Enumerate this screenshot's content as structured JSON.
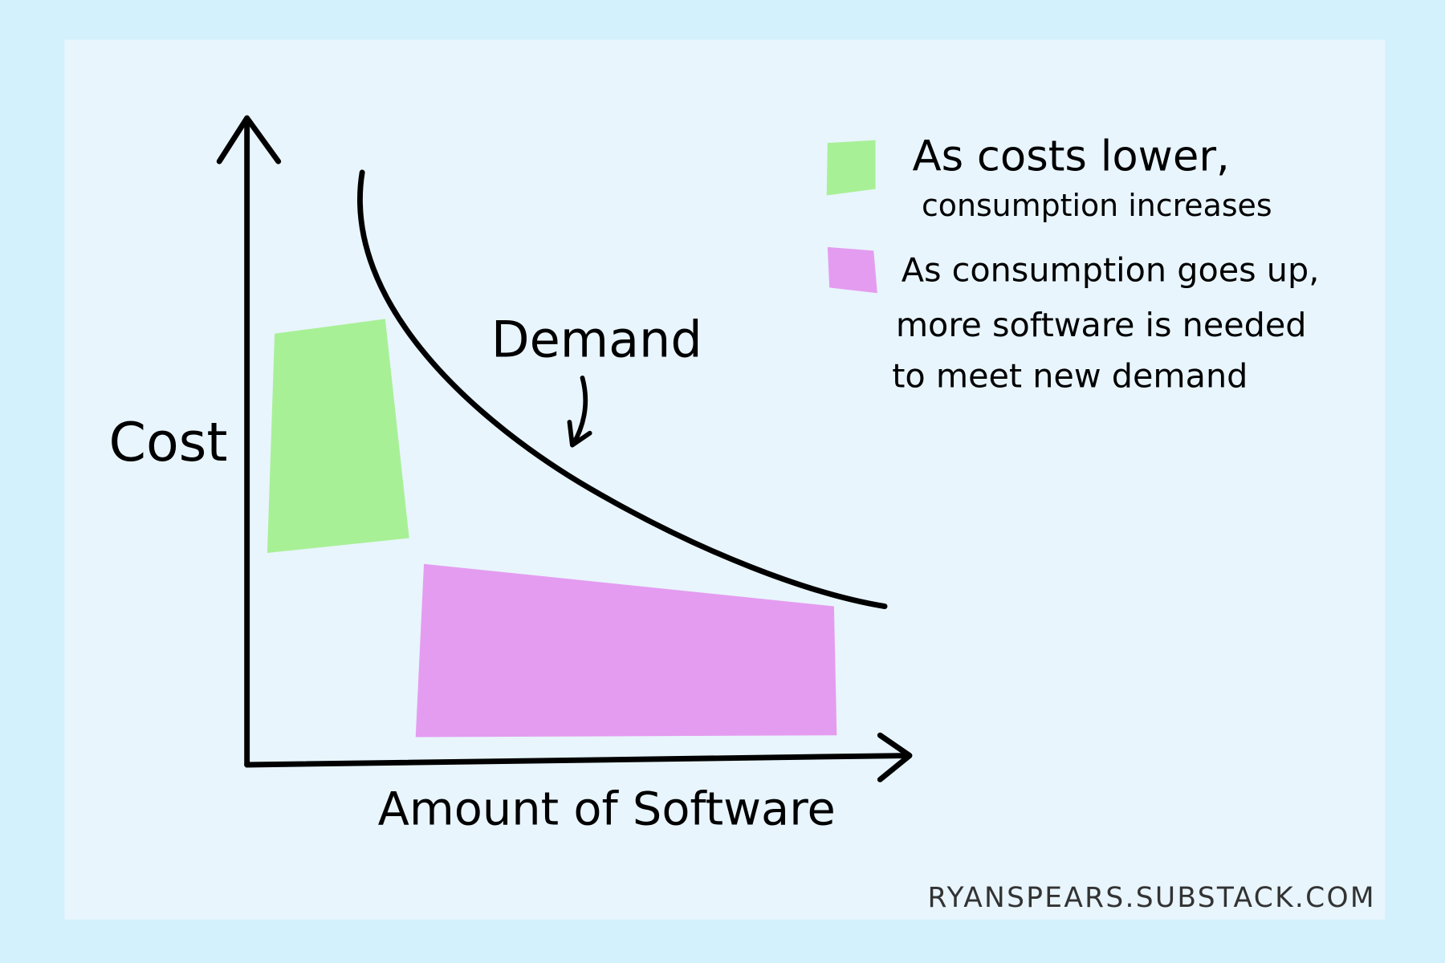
{
  "diagram": {
    "y_axis_label": "Cost",
    "x_axis_label": "Amount of Software",
    "curve_label": "Demand",
    "legend": [
      {
        "lines": [
          "As costs lower,",
          "consumption increases"
        ],
        "color": "#a8f096"
      },
      {
        "lines": [
          "As consumption goes up,",
          "more software is needed",
          "to meet new demand"
        ],
        "color": "#e49cf0"
      }
    ],
    "credit": "RYANSPEARS.SUBSTACK.COM"
  }
}
